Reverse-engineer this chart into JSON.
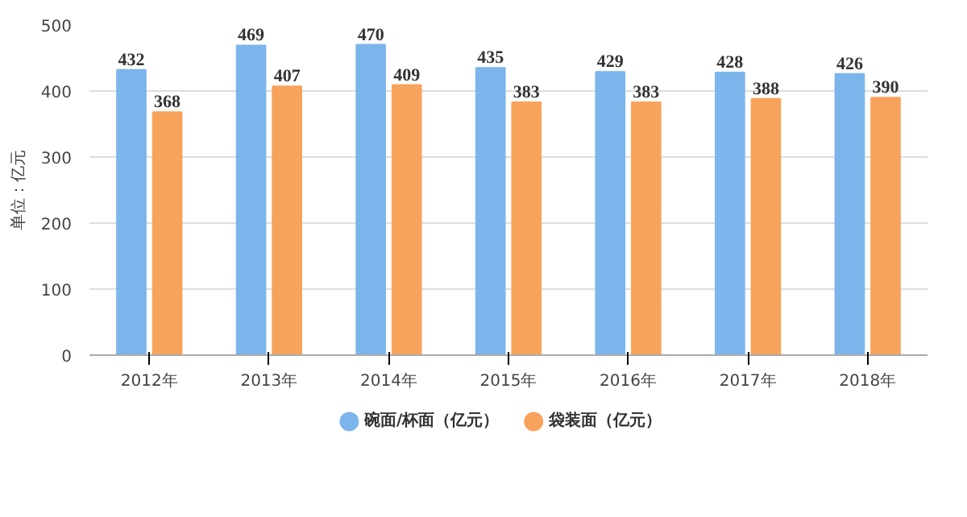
{
  "chart_data": {
    "type": "bar",
    "ylabel": "单位：亿元",
    "categories": [
      "2012年",
      "2013年",
      "2014年",
      "2015年",
      "2016年",
      "2017年",
      "2018年"
    ],
    "series": [
      {
        "name": "碗面/杯面（亿元）",
        "color": "#7cb5ec",
        "values": [
          432,
          469,
          470,
          435,
          429,
          428,
          426
        ]
      },
      {
        "name": "袋装面（亿元）",
        "color": "#f7a35c",
        "values": [
          368,
          407,
          409,
          383,
          383,
          388,
          390
        ]
      }
    ],
    "ylim": [
      0,
      500
    ],
    "yticks": [
      0,
      100,
      200,
      300,
      400,
      500
    ],
    "grid": "y",
    "legend": "bottom",
    "data_labels": true
  }
}
